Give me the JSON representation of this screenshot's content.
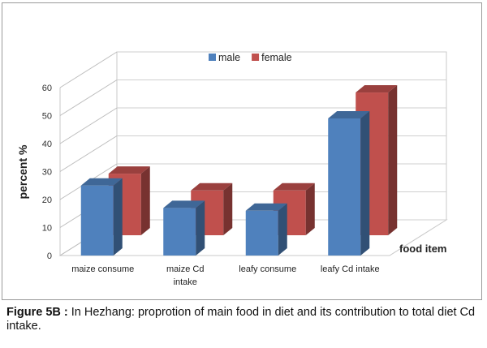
{
  "chart_data": {
    "type": "bar",
    "title": "",
    "xlabel": "food item",
    "ylabel": "percent %",
    "ylim": [
      0,
      60
    ],
    "yticks": [
      "0",
      "10",
      "20",
      "30",
      "40",
      "50",
      "60"
    ],
    "categories": [
      [
        "maize consume"
      ],
      [
        "maize Cd",
        "intake"
      ],
      [
        "leafy consume"
      ],
      [
        "leafy Cd intake"
      ]
    ],
    "series": [
      {
        "name": "male",
        "color": "#4f81bd",
        "values": [
          25,
          17,
          16,
          49
        ]
      },
      {
        "name": "female",
        "color": "#c0504d",
        "values": [
          22,
          16,
          16,
          51
        ]
      }
    ],
    "legend_position": "top-center",
    "grid": true,
    "style": "3d-clustered-column"
  },
  "caption": {
    "label": "Figure 5B :",
    "text": " In Hezhang: proprotion of main food in diet and its contribution to total diet Cd intake."
  }
}
